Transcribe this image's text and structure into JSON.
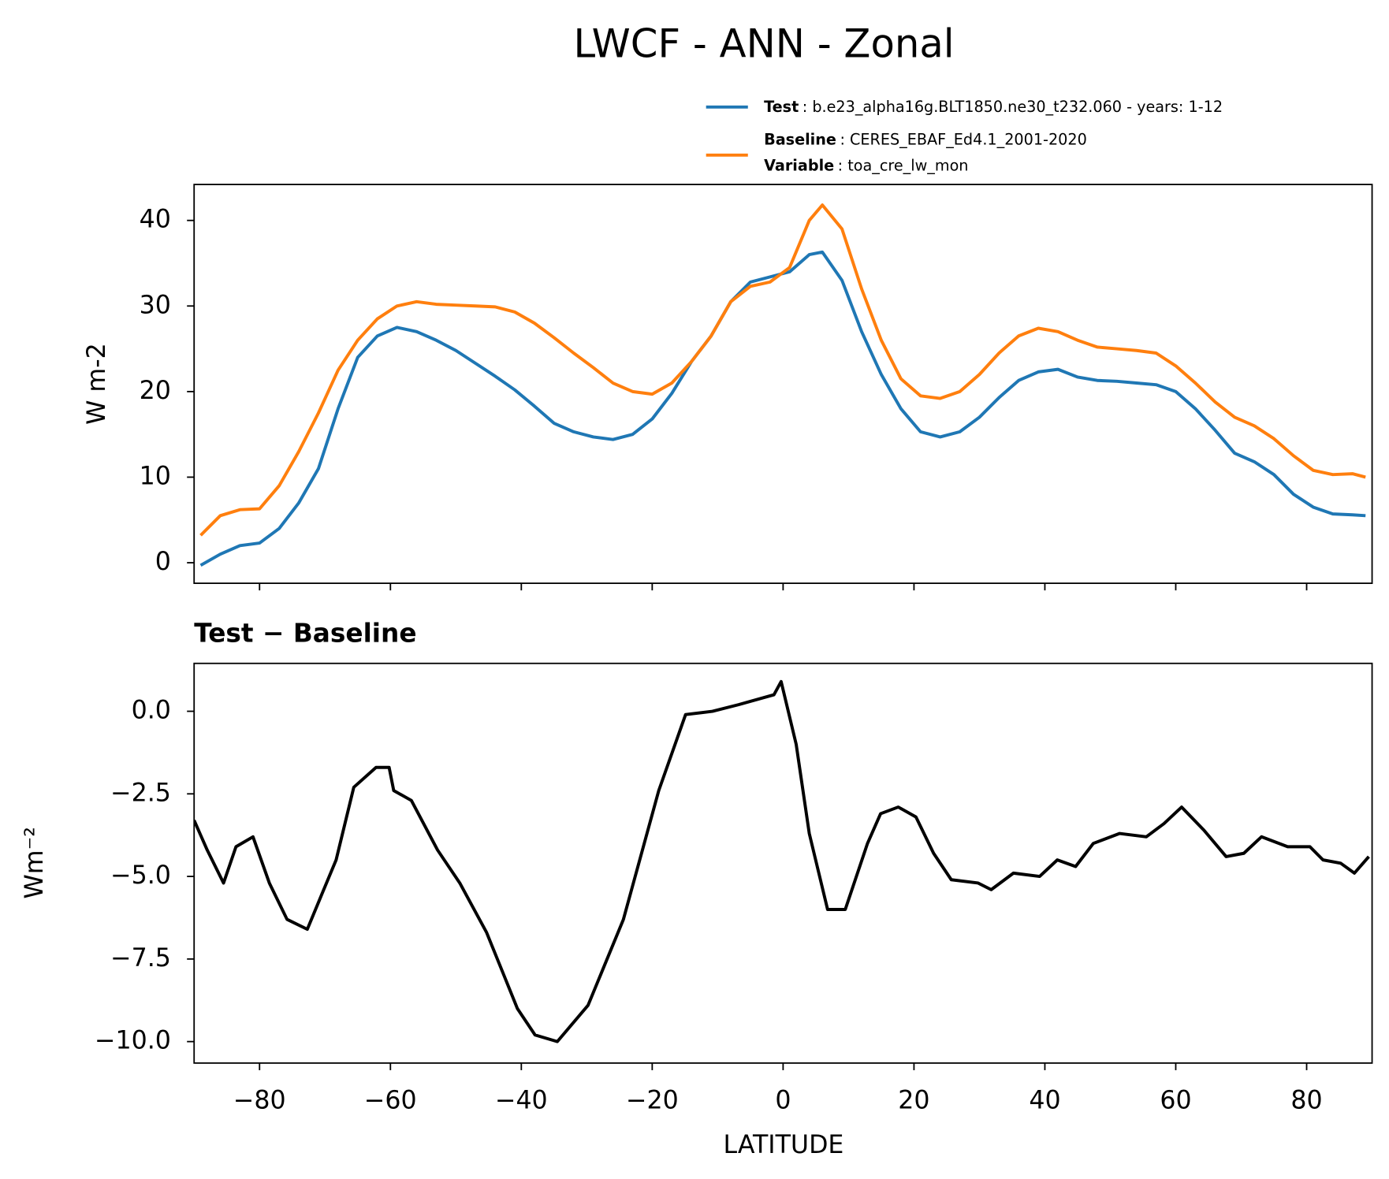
{
  "chart_data": [
    {
      "type": "line",
      "title": "LWCF - ANN - Zonal",
      "ylabel": "W m-2",
      "xlim": [
        -90,
        90
      ],
      "xticks": [
        -80,
        -60,
        -40,
        -20,
        0,
        20,
        40,
        60,
        80
      ],
      "ylim": [
        -2.4,
        44.2
      ],
      "yticks": [
        0,
        10,
        20,
        30,
        40
      ],
      "grid": false,
      "legend_position": "top-right",
      "legend_extra": {
        "name": "Variable",
        "text": ": toa_cre_lw_mon"
      },
      "x": [
        -89,
        -86,
        -83,
        -80,
        -77,
        -74,
        -71,
        -68,
        -65,
        -62,
        -59,
        -56,
        -53,
        -50,
        -47,
        -44,
        -41,
        -38,
        -35,
        -32,
        -29,
        -26,
        -23,
        -20,
        -17,
        -14,
        -11,
        -8,
        -5,
        -2,
        1,
        4,
        6,
        9,
        12,
        15,
        18,
        21,
        24,
        27,
        30,
        33,
        36,
        39,
        42,
        45,
        48,
        51,
        54,
        57,
        60,
        63,
        66,
        69,
        72,
        75,
        78,
        81,
        84,
        87,
        89
      ],
      "series": [
        {
          "name": "Test",
          "label_text": ": b.e23_alpha16g.BLT1850.ne30_t232.060 - years: 1-12",
          "color": "#1f77b4",
          "values": [
            -0.3,
            1.0,
            2.0,
            2.3,
            4.0,
            7.0,
            11.0,
            18.0,
            24.0,
            26.5,
            27.5,
            27.0,
            26.0,
            24.8,
            23.3,
            21.8,
            20.2,
            18.3,
            16.3,
            15.3,
            14.7,
            14.4,
            15.0,
            16.8,
            19.8,
            23.5,
            26.5,
            30.5,
            32.8,
            33.4,
            34.0,
            36.0,
            36.3,
            33.0,
            27.0,
            22.0,
            18.0,
            15.3,
            14.7,
            15.3,
            17.0,
            19.3,
            21.3,
            22.3,
            22.6,
            21.7,
            21.3,
            21.2,
            21.0,
            20.8,
            20.0,
            18.0,
            15.5,
            12.8,
            11.8,
            10.3,
            8.0,
            6.5,
            5.7,
            5.6,
            5.5
          ]
        },
        {
          "name": "Baseline",
          "label_text": ": CERES_EBAF_Ed4.1_2001-2020",
          "color": "#ff7f0e",
          "values": [
            3.2,
            5.5,
            6.2,
            6.3,
            9.0,
            13.0,
            17.5,
            22.5,
            26.0,
            28.5,
            30.0,
            30.5,
            30.2,
            30.1,
            30.0,
            29.9,
            29.3,
            28.0,
            26.3,
            24.5,
            22.8,
            21.0,
            20.0,
            19.7,
            21.0,
            23.5,
            26.5,
            30.5,
            32.3,
            32.8,
            34.5,
            40.0,
            41.8,
            39.0,
            32.0,
            26.0,
            21.5,
            19.5,
            19.2,
            20.0,
            22.0,
            24.5,
            26.5,
            27.4,
            27.0,
            26.0,
            25.2,
            25.0,
            24.8,
            24.5,
            23.0,
            21.0,
            18.8,
            17.0,
            16.0,
            14.5,
            12.5,
            10.8,
            10.3,
            10.4,
            10.0
          ]
        }
      ]
    },
    {
      "type": "line",
      "title": "Test − Baseline",
      "xlabel": "LATITUDE",
      "ylabel": "Wm⁻²",
      "xlim": [
        -90,
        90
      ],
      "xticks": [
        {
          "value": -80,
          "label": "−80"
        },
        {
          "value": -60,
          "label": "−60"
        },
        {
          "value": -40,
          "label": "−40"
        },
        {
          "value": -20,
          "label": "−20"
        },
        0,
        20,
        40,
        60,
        80
      ],
      "ylim": [
        -10.65,
        1.45
      ],
      "yticks": [
        {
          "value": 0,
          "label": "0.0"
        },
        {
          "value": -2.5,
          "label": "−2.5"
        },
        {
          "value": -5,
          "label": "−5.0"
        },
        {
          "value": -7.5,
          "label": "−7.5"
        },
        {
          "value": -10,
          "label": "−10.0"
        }
      ],
      "grid": false,
      "x": [
        -90,
        -88,
        -85.5,
        -83.6,
        -81,
        -78.5,
        -75.8,
        -72.7,
        -70.4,
        -68.3,
        -65.6,
        -62.2,
        -60.2,
        -59.5,
        -56.8,
        -52.8,
        -49.4,
        -45.3,
        -40.6,
        -37.9,
        -34.5,
        -29.8,
        -24.4,
        -19,
        -14.9,
        -10.8,
        -6.8,
        -1.4,
        -0.3,
        2,
        4,
        6.8,
        9.5,
        12.9,
        14.9,
        17.6,
        20.3,
        23,
        25.7,
        29.8,
        31.8,
        35.2,
        39.2,
        41.9,
        44.7,
        47.4,
        51.4,
        55.5,
        58.2,
        60.9,
        64.3,
        67.7,
        70.4,
        73.1,
        77.1,
        80.5,
        82.5,
        85.2,
        87.3,
        89.5
      ],
      "series": [
        {
          "name": "Test − Baseline",
          "color": "#000000",
          "values": [
            -3.3,
            -4.2,
            -5.2,
            -4.1,
            -3.8,
            -5.2,
            -6.3,
            -6.6,
            -5.5,
            -4.5,
            -2.3,
            -1.7,
            -1.7,
            -2.4,
            -2.7,
            -4.2,
            -5.2,
            -6.7,
            -9.0,
            -9.8,
            -10.0,
            -8.9,
            -6.3,
            -2.4,
            -0.1,
            0.0,
            0.2,
            0.5,
            0.9,
            -1.0,
            -3.7,
            -6.0,
            -6.0,
            -4.0,
            -3.1,
            -2.9,
            -3.2,
            -4.3,
            -5.1,
            -5.2,
            -5.4,
            -4.9,
            -5.0,
            -4.5,
            -4.7,
            -4.0,
            -3.7,
            -3.8,
            -3.4,
            -2.9,
            -3.6,
            -4.4,
            -4.3,
            -3.8,
            -4.1,
            -4.1,
            -4.5,
            -4.6,
            -4.9,
            -4.4
          ]
        }
      ]
    }
  ]
}
